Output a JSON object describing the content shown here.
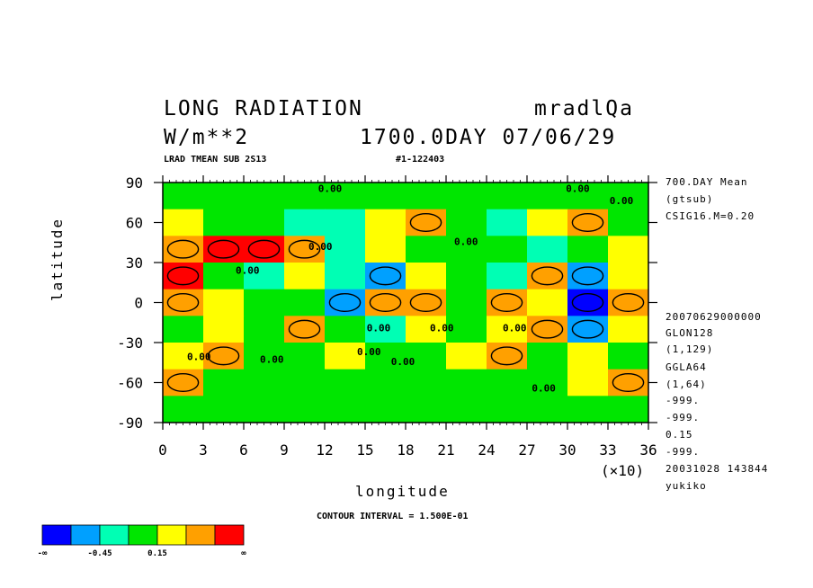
{
  "header": {
    "title": "LONG RADIATION",
    "units": "W/m**2",
    "variable": "mradlQa",
    "time": "1700.0DAY 07/06/29",
    "subtitle": "LRAD TMEAN SUB 2S13",
    "run_id": "#1-122403"
  },
  "side_info": {
    "top": [
      "700.DAY Mean",
      "(gtsub)",
      "CSIG16.M=0.20"
    ],
    "bottom": [
      "20070629000000",
      "GLON128",
      "(1,129)",
      "GGLA64",
      "(1,64)",
      "-999.",
      "-999.",
      "0.15",
      "-999.",
      "20031028 143844",
      "yukiko"
    ]
  },
  "contour_interval": "CONTOUR INTERVAL = 1.500E-01",
  "x_multiplier": "(×10)",
  "colorbar": {
    "colors": [
      "#0000ff",
      "#00a0ff",
      "#00ffb4",
      "#00e600",
      "#ffff00",
      "#ffa000",
      "#ff0000"
    ],
    "labels": [
      "-∞",
      "-0.45",
      "0.15",
      "∞"
    ]
  },
  "chart_data": {
    "type": "heatmap",
    "xlabel": "longitude",
    "ylabel": "latitude",
    "xlim": [
      0,
      36
    ],
    "ylim": [
      -90,
      90
    ],
    "xticks": [
      "0",
      "3",
      "6",
      "9",
      "12",
      "15",
      "18",
      "21",
      "24",
      "27",
      "30",
      "33",
      "36"
    ],
    "yticks": [
      "90",
      "60",
      "30",
      "0",
      "-30",
      "-60",
      "-90"
    ],
    "contour_labels": [
      "0.00",
      "0.00",
      "0.00",
      "0.00",
      "0.00",
      "0.00",
      "0.00",
      "0.00",
      "0.00",
      "0.00",
      "0.00",
      "0.00",
      "0.00",
      "0.00"
    ],
    "grid_resolution": "12 x 9 cells (coarse transcription)",
    "values": [
      [
        0.15,
        0.15,
        0.15,
        0.0,
        0.15,
        0.15,
        0.15,
        0.15,
        0.15,
        0.15,
        0.15,
        0.15
      ],
      [
        0.3,
        0.15,
        0.0,
        -0.3,
        -0.15,
        0.3,
        0.45,
        0.15,
        -0.15,
        0.3,
        0.45,
        0.15
      ],
      [
        0.45,
        0.6,
        0.6,
        0.45,
        -0.15,
        0.3,
        0.0,
        0.15,
        0.0,
        -0.3,
        0.15,
        0.3
      ],
      [
        0.6,
        0.15,
        -0.3,
        0.3,
        -0.3,
        -0.6,
        0.3,
        0.0,
        -0.15,
        0.45,
        -0.6,
        0.3
      ],
      [
        0.45,
        0.3,
        0.15,
        0.0,
        -0.45,
        0.45,
        0.45,
        0.15,
        0.45,
        0.3,
        -0.75,
        0.45
      ],
      [
        0.15,
        0.3,
        0.0,
        0.45,
        0.15,
        -0.15,
        0.3,
        0.0,
        0.3,
        0.45,
        -0.6,
        0.3
      ],
      [
        0.3,
        0.45,
        0.15,
        0.0,
        0.3,
        0.15,
        0.0,
        0.3,
        0.45,
        0.15,
        0.3,
        0.15
      ],
      [
        0.45,
        0.15,
        0.0,
        0.15,
        0.0,
        0.15,
        0.15,
        0.0,
        0.15,
        0.15,
        0.3,
        0.45
      ],
      [
        0.15,
        0.15,
        0.15,
        0.15,
        0.15,
        0.0,
        0.15,
        0.15,
        0.15,
        0.15,
        0.15,
        0.15
      ]
    ]
  }
}
